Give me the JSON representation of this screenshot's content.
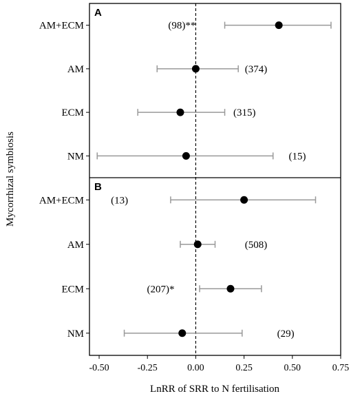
{
  "chart_data": {
    "type": "scatter",
    "ylabel": "Mycorrhizal symbiosis",
    "xlabel": "LnRR of SRR to N fertilisation",
    "xlim": [
      -0.55,
      0.75
    ],
    "xticks": [
      "-0.50",
      "-0.25",
      "0.00",
      "0.25",
      "0.50",
      "0.75"
    ],
    "xtick_values": [
      -0.5,
      -0.25,
      0.0,
      0.25,
      0.5,
      0.75
    ],
    "reference_line": 0,
    "colors": {
      "point": "#000000",
      "errorbar": "#999999",
      "frame": "#000000"
    },
    "panels": [
      {
        "label": "A",
        "rows": [
          {
            "category": "AM+ECM",
            "estimate": 0.43,
            "ci": [
              0.15,
              0.7
            ],
            "annotation": "(98)**",
            "annotation_x": 0.0
          },
          {
            "category": "AM",
            "estimate": 0.0,
            "ci": [
              -0.2,
              0.22
            ],
            "annotation": "(374)",
            "annotation_x": 0.37
          },
          {
            "category": "ECM",
            "estimate": -0.08,
            "ci": [
              -0.3,
              0.15
            ],
            "annotation": "(315)",
            "annotation_x": 0.31
          },
          {
            "category": "NM",
            "estimate": -0.05,
            "ci": [
              -0.51,
              0.4
            ],
            "annotation": "(15)",
            "annotation_x": 0.57
          }
        ]
      },
      {
        "label": "B",
        "rows": [
          {
            "category": "AM+ECM",
            "estimate": 0.25,
            "ci": [
              -0.13,
              0.62
            ],
            "annotation": "(13)",
            "annotation_x": -0.35
          },
          {
            "category": "AM",
            "estimate": 0.01,
            "ci": [
              -0.08,
              0.1
            ],
            "annotation": "(508)",
            "annotation_x": 0.37
          },
          {
            "category": "ECM",
            "estimate": 0.18,
            "ci": [
              0.02,
              0.34
            ],
            "annotation": "(207)*",
            "annotation_x": -0.11
          },
          {
            "category": "NM",
            "estimate": -0.07,
            "ci": [
              -0.37,
              0.24
            ],
            "annotation": "(29)",
            "annotation_x": 0.51
          }
        ]
      }
    ]
  }
}
